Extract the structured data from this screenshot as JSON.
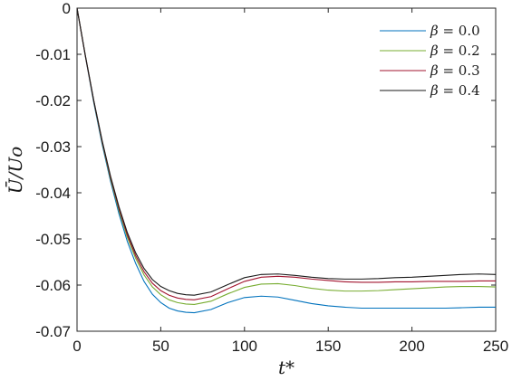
{
  "chart_data": {
    "type": "line",
    "xlabel": "t*",
    "ylabel": "Ū/Uo",
    "xlim": [
      0,
      250
    ],
    "ylim": [
      -0.07,
      0
    ],
    "xticks": [
      0,
      50,
      100,
      150,
      200,
      250
    ],
    "xtick_labels": [
      "0",
      "50",
      "100",
      "150",
      "200",
      "250"
    ],
    "yticks": [
      0,
      -0.01,
      -0.02,
      -0.03,
      -0.04,
      -0.05,
      -0.06,
      -0.07
    ],
    "ytick_labels": [
      "0",
      "-0.01",
      "-0.02",
      "-0.03",
      "-0.04",
      "-0.05",
      "-0.06",
      "-0.07"
    ],
    "grid": false,
    "legend_position": "top-right",
    "x": [
      0,
      5,
      10,
      15,
      20,
      25,
      30,
      35,
      40,
      45,
      50,
      55,
      60,
      65,
      70,
      80,
      90,
      100,
      110,
      120,
      130,
      140,
      150,
      160,
      170,
      180,
      190,
      200,
      210,
      220,
      230,
      240,
      250
    ],
    "series": [
      {
        "name": "β = 0.0",
        "color": "#0072bd",
        "values": [
          0,
          -0.0105,
          -0.0205,
          -0.0295,
          -0.0375,
          -0.0445,
          -0.0505,
          -0.0553,
          -0.0592,
          -0.062,
          -0.0638,
          -0.065,
          -0.0656,
          -0.0659,
          -0.066,
          -0.0653,
          -0.0638,
          -0.0627,
          -0.0624,
          -0.0626,
          -0.0633,
          -0.064,
          -0.0645,
          -0.0648,
          -0.065,
          -0.065,
          -0.065,
          -0.065,
          -0.065,
          -0.065,
          -0.0649,
          -0.0648,
          -0.0648
        ]
      },
      {
        "name": "β = 0.2",
        "color": "#77ac30",
        "values": [
          0,
          -0.0104,
          -0.0202,
          -0.0291,
          -0.037,
          -0.0438,
          -0.0496,
          -0.0542,
          -0.0578,
          -0.0604,
          -0.0621,
          -0.0632,
          -0.0638,
          -0.0641,
          -0.0642,
          -0.0635,
          -0.0619,
          -0.0605,
          -0.0598,
          -0.0597,
          -0.0601,
          -0.0607,
          -0.0611,
          -0.0613,
          -0.0613,
          -0.0612,
          -0.061,
          -0.0608,
          -0.0606,
          -0.0604,
          -0.0603,
          -0.0603,
          -0.0604
        ]
      },
      {
        "name": "β = 0.3",
        "color": "#a2142f",
        "values": [
          0,
          -0.0104,
          -0.0201,
          -0.0289,
          -0.0367,
          -0.0434,
          -0.0491,
          -0.0536,
          -0.0571,
          -0.0596,
          -0.0612,
          -0.0622,
          -0.0628,
          -0.0631,
          -0.0632,
          -0.0625,
          -0.0608,
          -0.0592,
          -0.0583,
          -0.0581,
          -0.0583,
          -0.0587,
          -0.059,
          -0.0593,
          -0.0594,
          -0.0594,
          -0.0593,
          -0.0593,
          -0.0592,
          -0.0592,
          -0.0592,
          -0.0591,
          -0.0591
        ]
      },
      {
        "name": "β = 0.4",
        "color": "#1a1a1a",
        "values": [
          0,
          -0.0103,
          -0.02,
          -0.0287,
          -0.0364,
          -0.043,
          -0.0486,
          -0.053,
          -0.0564,
          -0.0588,
          -0.0603,
          -0.0612,
          -0.0618,
          -0.0621,
          -0.0622,
          -0.0615,
          -0.0599,
          -0.0584,
          -0.0577,
          -0.0576,
          -0.0579,
          -0.0583,
          -0.0586,
          -0.0587,
          -0.0587,
          -0.0586,
          -0.0584,
          -0.0583,
          -0.0581,
          -0.0579,
          -0.0577,
          -0.0576,
          -0.0577
        ]
      }
    ]
  }
}
